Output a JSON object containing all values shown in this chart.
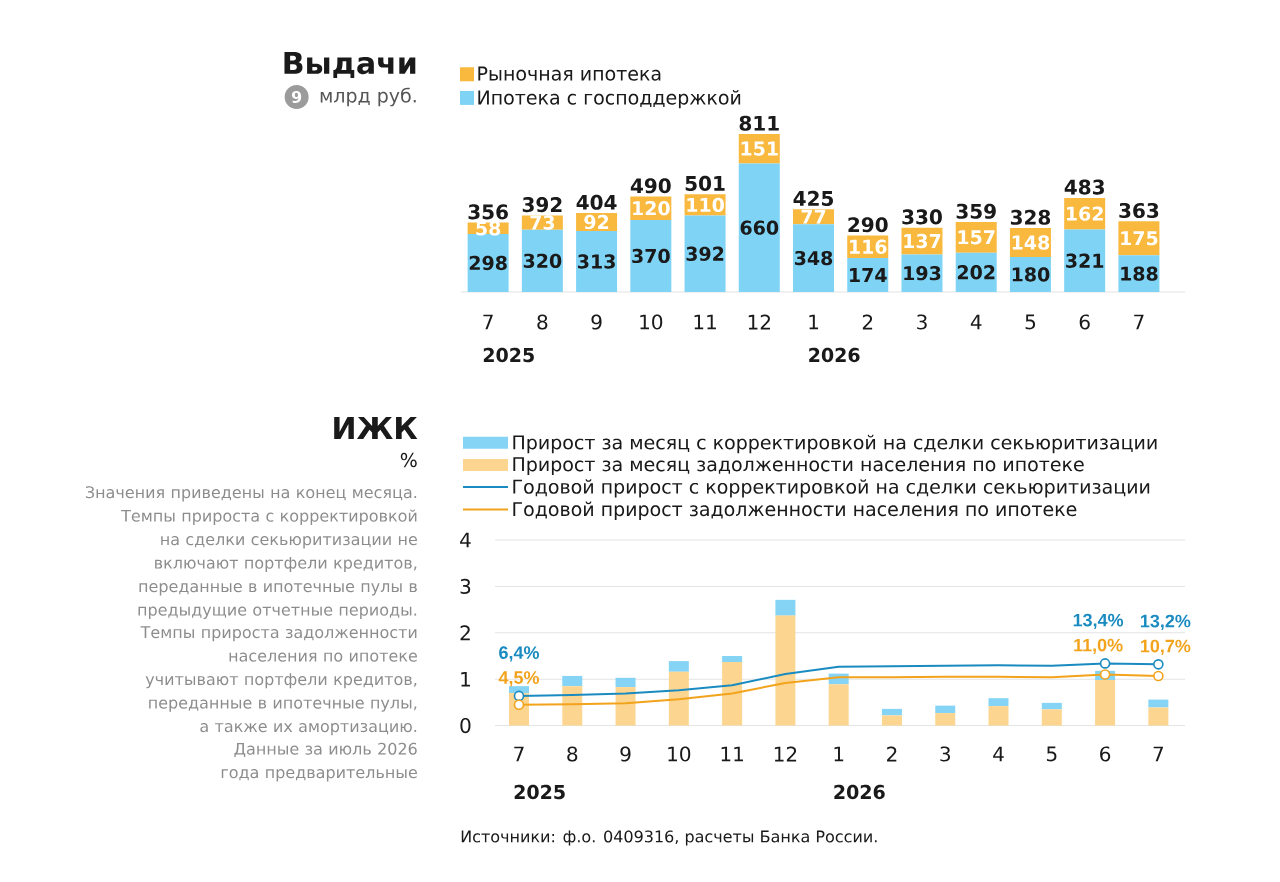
{
  "chart_data": [
    {
      "type": "bar",
      "title": "Выдачи",
      "subtitle": "млрд руб.",
      "stacked": true,
      "categories": [
        "7",
        "8",
        "9",
        "10",
        "11",
        "12",
        "1",
        "2",
        "3",
        "4",
        "5",
        "6",
        "7"
      ],
      "series": [
        {
          "name": "Ипотека с господдержкой",
          "color": "#7fd4f6",
          "values": [
            298,
            320,
            313,
            370,
            392,
            660,
            348,
            174,
            193,
            202,
            180,
            321,
            188
          ]
        },
        {
          "name": "Рыночная ипотека",
          "color": "#f9b83e",
          "values": [
            58,
            73,
            92,
            120,
            110,
            151,
            77,
            116,
            137,
            157,
            148,
            162,
            175
          ]
        }
      ],
      "totals": [
        "356",
        "392",
        "404",
        "490",
        "501",
        "811",
        "425",
        "290",
        "330",
        "359",
        "328",
        "483",
        "363"
      ],
      "data_labels": true,
      "tick_labels": "x",
      "legend": "top left",
      "annotations": [
        "9",
        "2025",
        "2026"
      ]
    },
    {
      "type": "bar",
      "title": "ИЖК",
      "subtitle": "%",
      "stacked": true,
      "categories": [
        "7",
        "8",
        "9",
        "10",
        "11",
        "12",
        "1",
        "2",
        "3",
        "4",
        "5",
        "6",
        "7"
      ],
      "series": [
        {
          "name": "Прирост за месяц задолженности населения по ипотеке",
          "color": "#fcd691",
          "values": [
            0.7,
            0.85,
            0.83,
            1.16,
            1.37,
            2.37,
            0.89,
            0.22,
            0.27,
            0.42,
            0.35,
            0.98,
            0.39
          ]
        },
        {
          "name": "Прирост за месяц с корректировкой на сделки секьюритизации",
          "color": "#85d4f5",
          "values": [
            0.15,
            0.22,
            0.2,
            0.23,
            0.13,
            0.34,
            0.23,
            0.14,
            0.16,
            0.17,
            0.14,
            0.2,
            0.17
          ]
        },
        {
          "name": "Годовой прирост с корректировкой на сделки секьюритизации",
          "type": "line",
          "axis": "y2",
          "color": "#1a8bc0",
          "values": [
            6.4,
            6.6,
            6.9,
            7.6,
            8.7,
            11.1,
            12.7,
            12.8,
            12.9,
            13.0,
            12.9,
            13.4,
            13.2
          ],
          "value_labels": [
            "6,4%",
            null,
            null,
            null,
            null,
            null,
            null,
            null,
            null,
            null,
            null,
            "13,4%",
            "13,2%"
          ]
        },
        {
          "name": "Годовой прирост задолженности населения по ипотеке",
          "type": "line",
          "axis": "y2",
          "color": "#f2a31b",
          "values": [
            4.5,
            4.6,
            4.8,
            5.7,
            6.9,
            9.2,
            10.4,
            10.4,
            10.5,
            10.5,
            10.4,
            11.0,
            10.7
          ],
          "value_labels": [
            "4,5%",
            null,
            null,
            null,
            null,
            null,
            null,
            null,
            null,
            null,
            null,
            "11,0%",
            "10,7%"
          ]
        }
      ],
      "ylim": [
        0,
        4
      ],
      "yticks": [
        0,
        1,
        2,
        3,
        4
      ],
      "y2lim": [
        0,
        40
      ],
      "grid": "y",
      "legend": "top left",
      "annotations": [
        "Значения приведены на конец месяца. Темпы прироста с корректировкой на сделки секьюритизации не включают портфели кредитов, переданные в ипотечные пулы в предыдущие отчетные периоды.",
        "Темпы прироста задолженности населения по ипотеке учитывают портфели кредитов, переданные в ипотечные пулы, а также их амортизацию.",
        "Данные за июль 2026 года предварительные",
        "Источники: ф.о. 0409316, расчеты Банка России.",
        "2025",
        "2026"
      ]
    }
  ]
}
